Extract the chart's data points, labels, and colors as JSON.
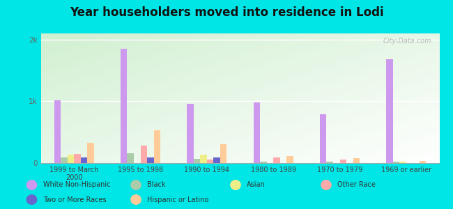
{
  "title": "Year householders moved into residence in Lodi",
  "categories": [
    "1999 to March\n2000",
    "1995 to 1998",
    "1990 to 1994",
    "1980 to 1989",
    "1970 to 1979",
    "1969 or earlier"
  ],
  "series": {
    "White Non-Hispanic": [
      1020,
      1850,
      960,
      980,
      790,
      1680
    ],
    "Black": [
      90,
      160,
      65,
      18,
      22,
      18
    ],
    "Asian": [
      140,
      0,
      130,
      0,
      0,
      25
    ],
    "Other Race": [
      150,
      280,
      60,
      95,
      55,
      0
    ],
    "Two or More Races": [
      85,
      90,
      90,
      0,
      0,
      0
    ],
    "Hispanic or Latino": [
      330,
      530,
      310,
      110,
      80,
      30
    ]
  },
  "colors": {
    "White Non-Hispanic": "#cc99ee",
    "Black": "#aaccaa",
    "Asian": "#eeee88",
    "Other Race": "#ffaaaa",
    "Two or More Races": "#6666cc",
    "Hispanic or Latino": "#ffcc99"
  },
  "ylim": [
    0,
    2100
  ],
  "yticks": [
    0,
    1000,
    2000
  ],
  "ytick_labels": [
    "0",
    "1k",
    "2k"
  ],
  "background_color": "#00e5e5",
  "watermark": "City-Data.com",
  "legend_row1": [
    "White Non-Hispanic",
    "Black",
    "Asian",
    "Other Race"
  ],
  "legend_row2": [
    "Two or More Races",
    "Hispanic or Latino"
  ]
}
